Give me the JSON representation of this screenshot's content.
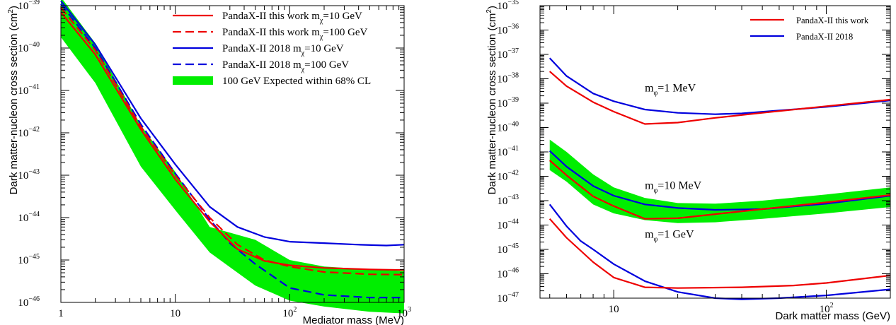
{
  "colors": {
    "red": "#ee0000",
    "blue": "#0000dd",
    "band": "#00ee00",
    "axis": "#000000"
  },
  "chart_data": [
    {
      "type": "line",
      "xlabel": "Mediator mass (MeV)",
      "ylabel": "Dark matter-nucleon cross section (cm",
      "ylabel_sup": "2",
      "ylabel_end": ")",
      "x_scale": "log",
      "y_scale": "log",
      "xlim": [
        1,
        1000
      ],
      "ylim": [
        1e-46,
        1e-39
      ],
      "x_ticks": [
        {
          "value": 1,
          "label": "1"
        },
        {
          "value": 10,
          "label": "10"
        },
        {
          "value": 100,
          "base": "10",
          "exp": "2"
        },
        {
          "value": 1000,
          "base": "10",
          "exp": "3"
        }
      ],
      "y_ticks": [
        {
          "value": 1e-46,
          "base": "10",
          "exp": "−46"
        },
        {
          "value": 1e-45,
          "base": "10",
          "exp": "−45"
        },
        {
          "value": 1e-44,
          "base": "10",
          "exp": "−44"
        },
        {
          "value": 1e-43,
          "base": "10",
          "exp": "−43"
        },
        {
          "value": 1e-42,
          "base": "10",
          "exp": "−42"
        },
        {
          "value": 1e-41,
          "base": "10",
          "exp": "−41"
        },
        {
          "value": 1e-40,
          "base": "10",
          "exp": "−40"
        },
        {
          "value": 1e-39,
          "base": "10",
          "exp": "−39"
        }
      ],
      "legend": [
        {
          "text": "PandaX-II this work m",
          "sub": "χ",
          "after": "=10 GeV",
          "kind": "line",
          "color": "#ee0000",
          "dash": false
        },
        {
          "text": "PandaX-II this work m",
          "sub": "χ",
          "after": "=100 GeV",
          "kind": "line",
          "color": "#ee0000",
          "dash": true
        },
        {
          "text": "PandaX-II 2018 m",
          "sub": "χ",
          "after": "=10 GeV",
          "kind": "line",
          "color": "#0000dd",
          "dash": false
        },
        {
          "text": "PandaX-II 2018 m",
          "sub": "χ",
          "after": "=100 GeV",
          "kind": "line",
          "color": "#0000dd",
          "dash": true
        },
        {
          "text": "100 GeV Expected within 68% CL",
          "sub": "",
          "after": "",
          "kind": "box",
          "color": "#00ee00",
          "dash": false
        }
      ],
      "bands": [
        {
          "color": "#00ee00",
          "upper": [
            [
              1,
              1.6e-39
            ],
            [
              2,
              1.3e-40
            ],
            [
              5,
              1.5e-42
            ],
            [
              10,
              1.2e-43
            ],
            [
              20,
              6e-45
            ],
            [
              50,
              3e-45
            ],
            [
              100,
              1e-45
            ],
            [
              200,
              7e-46
            ],
            [
              500,
              6e-46
            ],
            [
              1000,
              5.5e-46
            ]
          ],
          "lower": [
            [
              1,
              1.8e-40
            ],
            [
              2,
              1.5e-41
            ],
            [
              5,
              1.6e-43
            ],
            [
              10,
              1.5e-44
            ],
            [
              20,
              1.5e-45
            ],
            [
              50,
              2.5e-46
            ],
            [
              100,
              1.1e-46
            ],
            [
              200,
              8e-47
            ],
            [
              500,
              6e-47
            ],
            [
              1000,
              5.5e-47
            ]
          ]
        }
      ],
      "series": [
        {
          "color": "#0000dd",
          "dash": false,
          "points": [
            [
              1,
              1.3e-39
            ],
            [
              2,
              1.2e-40
            ],
            [
              5,
              2.2e-42
            ],
            [
              10,
              1.8e-43
            ],
            [
              20,
              1.8e-44
            ],
            [
              35,
              6e-45
            ],
            [
              60,
              3.5e-45
            ],
            [
              100,
              2.7e-45
            ],
            [
              200,
              2.5e-45
            ],
            [
              400,
              2.3e-45
            ],
            [
              700,
              2.2e-45
            ],
            [
              1000,
              2.3e-45
            ]
          ]
        },
        {
          "color": "#0000dd",
          "dash": true,
          "points": [
            [
              1,
              1.1e-39
            ],
            [
              2,
              1e-40
            ],
            [
              5,
              1.6e-42
            ],
            [
              10,
              1.1e-43
            ],
            [
              20,
              9e-45
            ],
            [
              30,
              2.5e-45
            ],
            [
              50,
              8e-46
            ],
            [
              100,
              2.2e-46
            ],
            [
              200,
              1.5e-46
            ],
            [
              500,
              1.3e-46
            ],
            [
              1000,
              1.3e-46
            ]
          ]
        },
        {
          "color": "#ee0000",
          "dash": false,
          "points": [
            [
              1,
              7e-40
            ],
            [
              2,
              7e-41
            ],
            [
              5,
              1.2e-42
            ],
            [
              10,
              8e-44
            ],
            [
              20,
              8e-45
            ],
            [
              35,
              1.8e-45
            ],
            [
              60,
              9.5e-46
            ],
            [
              100,
              7.5e-46
            ],
            [
              200,
              6.5e-46
            ],
            [
              500,
              6e-46
            ],
            [
              1000,
              5.8e-46
            ]
          ]
        },
        {
          "color": "#ee0000",
          "dash": true,
          "points": [
            [
              1,
              9e-40
            ],
            [
              2,
              9e-41
            ],
            [
              5,
              1.4e-42
            ],
            [
              10,
              1e-43
            ],
            [
              20,
              1e-44
            ],
            [
              35,
              2.3e-45
            ],
            [
              60,
              1e-45
            ],
            [
              100,
              7e-46
            ],
            [
              200,
              5.2e-46
            ],
            [
              500,
              4.6e-46
            ],
            [
              1000,
              4.5e-46
            ]
          ]
        }
      ]
    },
    {
      "type": "line",
      "xlabel": "Dark matter mass (GeV)",
      "ylabel": "Dark matter-nucleon cross section (cm",
      "ylabel_sup": "2",
      "ylabel_end": ")",
      "x_scale": "log",
      "y_scale": "log",
      "xlim": [
        4.5,
        200
      ],
      "ylim": [
        1e-47,
        1e-35
      ],
      "x_ticks": [
        {
          "value": 10,
          "label": "10"
        },
        {
          "value": 100,
          "base": "10",
          "exp": "2"
        }
      ],
      "y_ticks": [
        {
          "value": 1e-47,
          "base": "10",
          "exp": "−47"
        },
        {
          "value": 1e-46,
          "base": "10",
          "exp": "−46"
        },
        {
          "value": 1e-45,
          "base": "10",
          "exp": "−45"
        },
        {
          "value": 1e-44,
          "base": "10",
          "exp": "−44"
        },
        {
          "value": 1e-43,
          "base": "10",
          "exp": "−43"
        },
        {
          "value": 1e-42,
          "base": "10",
          "exp": "−42"
        },
        {
          "value": 1e-41,
          "base": "10",
          "exp": "−41"
        },
        {
          "value": 1e-40,
          "base": "10",
          "exp": "−40"
        },
        {
          "value": 1e-39,
          "base": "10",
          "exp": "−39"
        },
        {
          "value": 1e-38,
          "base": "10",
          "exp": "−38"
        },
        {
          "value": 1e-37,
          "base": "10",
          "exp": "−37"
        },
        {
          "value": 1e-36,
          "base": "10",
          "exp": "−36"
        },
        {
          "value": 1e-35,
          "base": "10",
          "exp": "−35"
        }
      ],
      "legend": [
        {
          "text": "PandaX-II this work",
          "sub": "",
          "after": "",
          "kind": "line",
          "color": "#ee0000",
          "dash": false
        },
        {
          "text": "PandaX-II 2018",
          "sub": "",
          "after": "",
          "kind": "line",
          "color": "#0000dd",
          "dash": false
        }
      ],
      "annotations": [
        {
          "text": "m",
          "sub": "φ",
          "after": "=1 MeV",
          "x": 14,
          "y": 3e-39
        },
        {
          "text": "m",
          "sub": "φ",
          "after": "=10 MeV",
          "x": 14,
          "y": 3e-43
        },
        {
          "text": "m",
          "sub": "φ",
          "after": "=1 GeV",
          "x": 14,
          "y": 3e-45
        }
      ],
      "bands": [
        {
          "color": "#00ee00",
          "upper": [
            [
              5,
              3.2e-41
            ],
            [
              6,
              1e-41
            ],
            [
              8,
              1.2e-42
            ],
            [
              10,
              3.5e-43
            ],
            [
              14,
              1.3e-43
            ],
            [
              20,
              8e-44
            ],
            [
              30,
              7.5e-44
            ],
            [
              50,
              1e-43
            ],
            [
              100,
              1.8e-43
            ],
            [
              200,
              3.5e-43
            ]
          ],
          "lower": [
            [
              5,
              1.8e-42
            ],
            [
              6,
              6e-43
            ],
            [
              8,
              7e-44
            ],
            [
              10,
              3e-44
            ],
            [
              14,
              1.6e-44
            ],
            [
              20,
              1.2e-44
            ],
            [
              30,
              1.3e-44
            ],
            [
              50,
              1.8e-44
            ],
            [
              100,
              3e-44
            ],
            [
              200,
              5.5e-44
            ]
          ]
        }
      ],
      "series": [
        {
          "color": "#0000dd",
          "dash": false,
          "points": [
            [
              5,
              7e-38
            ],
            [
              6,
              1.3e-38
            ],
            [
              8,
              2.5e-39
            ],
            [
              10,
              1.2e-39
            ],
            [
              14,
              5.5e-40
            ],
            [
              20,
              4e-40
            ],
            [
              30,
              3.5e-40
            ],
            [
              40,
              3.8e-40
            ],
            [
              60,
              5e-40
            ],
            [
              100,
              7e-40
            ],
            [
              200,
              1.3e-39
            ]
          ]
        },
        {
          "color": "#ee0000",
          "dash": false,
          "points": [
            [
              5,
              2e-38
            ],
            [
              6,
              5e-39
            ],
            [
              8,
              1.1e-39
            ],
            [
              10,
              4.5e-40
            ],
            [
              14,
              1.4e-40
            ],
            [
              20,
              1.6e-40
            ],
            [
              30,
              2.5e-40
            ],
            [
              50,
              4e-40
            ],
            [
              100,
              7.5e-40
            ],
            [
              200,
              1.4e-39
            ]
          ]
        },
        {
          "color": "#0000dd",
          "dash": false,
          "points": [
            [
              5,
              1.1e-41
            ],
            [
              6,
              2.5e-42
            ],
            [
              8,
              4e-43
            ],
            [
              10,
              1.6e-43
            ],
            [
              14,
              7e-44
            ],
            [
              20,
              5e-44
            ],
            [
              30,
              4.2e-44
            ],
            [
              50,
              4.5e-44
            ],
            [
              100,
              7.5e-44
            ],
            [
              200,
              1.6e-43
            ]
          ]
        },
        {
          "color": "#ee0000",
          "dash": false,
          "points": [
            [
              5,
              4.5e-42
            ],
            [
              6,
              1.1e-42
            ],
            [
              8,
              1.5e-43
            ],
            [
              10,
              6e-44
            ],
            [
              14,
              1.8e-44
            ],
            [
              20,
              1.9e-44
            ],
            [
              30,
              2.8e-44
            ],
            [
              50,
              4.5e-44
            ],
            [
              100,
              8.5e-44
            ],
            [
              200,
              1.7e-43
            ]
          ]
        },
        {
          "color": "#0000dd",
          "dash": false,
          "points": [
            [
              5,
              7e-44
            ],
            [
              6,
              9e-45
            ],
            [
              7,
              2.2e-45
            ],
            [
              8,
              1e-45
            ],
            [
              10,
              2.5e-46
            ],
            [
              14,
              5e-47
            ],
            [
              20,
              1.8e-47
            ],
            [
              30,
              1e-47
            ],
            [
              40,
              9e-48
            ],
            [
              60,
              1e-47
            ],
            [
              100,
              1.3e-47
            ],
            [
              200,
              2.3e-47
            ]
          ]
        },
        {
          "color": "#ee0000",
          "dash": false,
          "points": [
            [
              5,
              1.8e-44
            ],
            [
              6,
              3e-45
            ],
            [
              8,
              3e-46
            ],
            [
              10,
              7e-47
            ],
            [
              14,
              2.8e-47
            ],
            [
              20,
              2.6e-47
            ],
            [
              40,
              2.8e-47
            ],
            [
              70,
              3.3e-47
            ],
            [
              100,
              4.2e-47
            ],
            [
              200,
              8.5e-47
            ]
          ]
        }
      ]
    }
  ]
}
